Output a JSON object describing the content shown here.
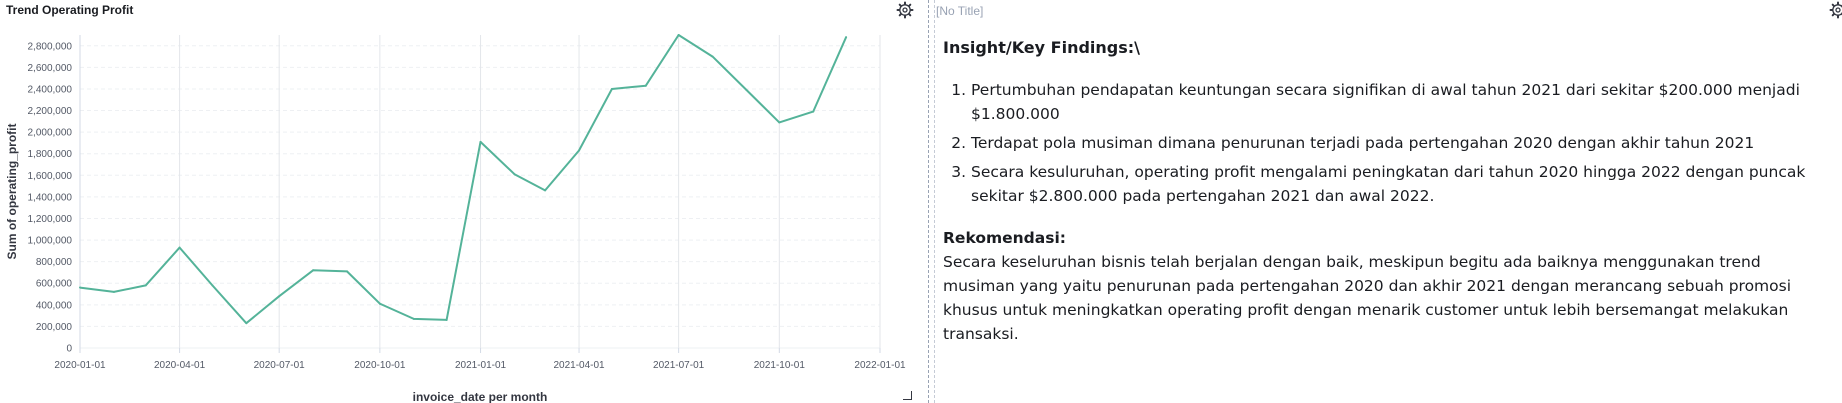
{
  "left_panel": {
    "title": "Trend Operating Profit"
  },
  "right_panel": {
    "title": "[No Title]",
    "heading": "Insight/Key Findings:\\",
    "findings": [
      "Pertumbuhan pendapatan keuntungan secara signifikan di awal tahun 2021 dari sekitar $200.000 menjadi $1.800.000",
      "Terdapat pola musiman dimana penurunan terjadi pada pertengahan 2020 dengan akhir tahun 2021",
      "Secara kesuluruhan, operating profit mengalami peningkatan dari tahun 2020 hingga 2022 dengan puncak sekitar $2.800.000 pada pertengahan 2021 dan awal 2022."
    ],
    "rec_title": "Rekomendasi:",
    "rec_text": "Secara keseluruhan bisnis telah berjalan dengan baik, meskipun begitu ada baiknya menggunakan trend musiman yang yaitu penurunan pada pertengahan 2020 dan akhir 2021 dengan merancang sebuah promosi khusus untuk meningkatkan operating profit dengan menarik customer untuk lebih bersemangat melakukan transaksi."
  },
  "icons": {
    "settings": "gear-icon"
  },
  "chart_data": {
    "type": "line",
    "title": "Trend Operating Profit",
    "xlabel": "invoice_date per month",
    "ylabel": "Sum of operating_profit",
    "line_color": "#54b399",
    "grid": true,
    "ylim": [
      0,
      2900000
    ],
    "xlim": [
      "2020-01-01",
      "2022-01-01"
    ],
    "y_ticks": [
      0,
      200000,
      400000,
      600000,
      800000,
      1000000,
      1200000,
      1400000,
      1600000,
      1800000,
      2000000,
      2200000,
      2400000,
      2600000,
      2800000
    ],
    "y_tick_labels": [
      "0",
      "200,000",
      "400,000",
      "600,000",
      "800,000",
      "1,000,000",
      "1,200,000",
      "1,400,000",
      "1,600,000",
      "1,800,000",
      "2,000,000",
      "2,200,000",
      "2,400,000",
      "2,600,000",
      "2,800,000"
    ],
    "x_ticks": [
      "2020-01-01",
      "2020-04-01",
      "2020-07-01",
      "2020-10-01",
      "2021-01-01",
      "2021-04-01",
      "2021-07-01",
      "2021-10-01",
      "2022-01-01"
    ],
    "x": [
      "2020-01-01",
      "2020-02-01",
      "2020-03-01",
      "2020-04-01",
      "2020-05-01",
      "2020-06-01",
      "2020-07-01",
      "2020-08-01",
      "2020-09-01",
      "2020-10-01",
      "2020-11-01",
      "2020-12-01",
      "2021-01-01",
      "2021-02-01",
      "2021-03-01",
      "2021-04-01",
      "2021-05-01",
      "2021-06-01",
      "2021-07-01",
      "2021-08-01",
      "2021-09-01",
      "2021-10-01",
      "2021-11-01",
      "2021-12-01"
    ],
    "values": [
      560000,
      520000,
      580000,
      930000,
      580000,
      230000,
      480000,
      720000,
      710000,
      410000,
      270000,
      260000,
      1910000,
      1610000,
      1460000,
      1830000,
      2400000,
      2430000,
      2900000,
      2700000,
      2390000,
      2090000,
      2190000,
      2880000
    ]
  }
}
